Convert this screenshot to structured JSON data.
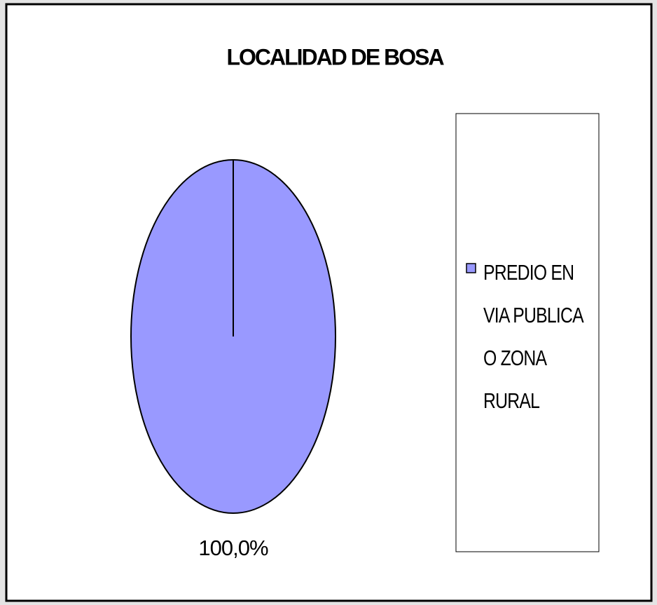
{
  "chart_data": {
    "type": "pie",
    "title": "LOCALIDAD DE BOSA",
    "categories": [
      "PREDIO EN VIA PUBLICA O ZONA RURAL"
    ],
    "values": [
      100
    ],
    "value_labels": [
      "100,0%"
    ],
    "colors": [
      "#9999ff"
    ],
    "legend": "right"
  }
}
